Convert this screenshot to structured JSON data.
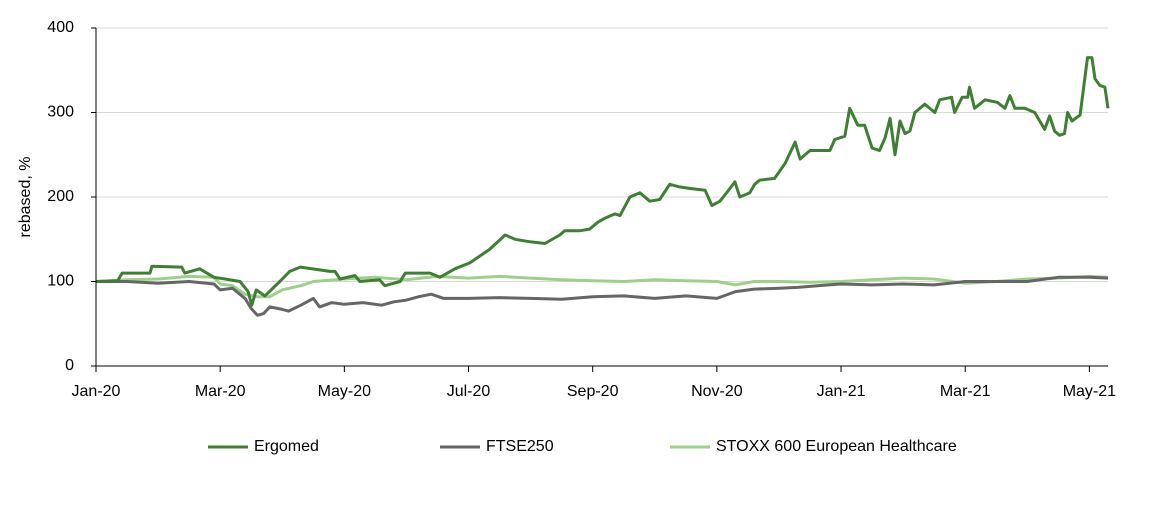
{
  "chart_data": {
    "type": "line",
    "y_label": "rebased, %",
    "ylim": [
      0,
      400
    ],
    "yticks": [
      0,
      100,
      200,
      300,
      400
    ],
    "grid": true,
    "xlim": [
      0,
      16.3
    ],
    "xticks": [
      {
        "value": 0,
        "label": "Jan-20"
      },
      {
        "value": 2,
        "label": "Mar-20"
      },
      {
        "value": 4,
        "label": "May-20"
      },
      {
        "value": 6,
        "label": "Jul-20"
      },
      {
        "value": 8,
        "label": "Sep-20"
      },
      {
        "value": 10,
        "label": "Nov-20"
      },
      {
        "value": 12,
        "label": "Jan-21"
      },
      {
        "value": 14,
        "label": "Mar-21"
      },
      {
        "value": 16,
        "label": "May-21"
      }
    ],
    "legend": "bottom",
    "series": [
      {
        "name": "Ergomed",
        "color": "#3e7f34",
        "x": [
          0,
          0.35,
          0.42,
          0.87,
          0.9,
          1.38,
          1.43,
          1.67,
          1.9,
          2.08,
          2.32,
          2.45,
          2.51,
          2.58,
          2.72,
          2.96,
          3.12,
          3.29,
          3.77,
          3.85,
          3.93,
          4.17,
          4.25,
          4.57,
          4.65,
          4.9,
          4.98,
          5.38,
          5.54,
          5.78,
          6.02,
          6.18,
          6.34,
          6.59,
          6.75,
          6.99,
          7.23,
          7.47,
          7.55,
          7.79,
          7.95,
          8.08,
          8.2,
          8.36,
          8.44,
          8.6,
          8.76,
          8.92,
          9.08,
          9.24,
          9.4,
          9.57,
          9.81,
          9.92,
          10.05,
          10.21,
          10.29,
          10.37,
          10.53,
          10.61,
          10.69,
          10.93,
          11.1,
          11.26,
          11.34,
          11.5,
          11.66,
          11.82,
          11.9,
          12.06,
          12.14,
          12.27,
          12.38,
          12.5,
          12.62,
          12.71,
          12.79,
          12.87,
          12.95,
          13.03,
          13.11,
          13.19,
          13.35,
          13.51,
          13.59,
          13.78,
          13.83,
          13.95,
          14.04,
          14.07,
          14.15,
          14.32,
          14.52,
          14.64,
          14.72,
          14.8,
          14.96,
          15.12,
          15.28,
          15.36,
          15.44,
          15.52,
          15.6,
          15.65,
          15.72,
          15.85,
          15.97,
          16.04,
          16.09,
          16.17,
          16.25,
          16.3
        ],
        "values": [
          100,
          101,
          110,
          110,
          118,
          117,
          110,
          115,
          105,
          103,
          100,
          88,
          72,
          90,
          83,
          100,
          112,
          117,
          112,
          112,
          103,
          107,
          100,
          102,
          95,
          100,
          110,
          110,
          105,
          115,
          122,
          130,
          138,
          155,
          150,
          147,
          145,
          155,
          160,
          160,
          162,
          170,
          175,
          180,
          178,
          200,
          205,
          195,
          197,
          215,
          212,
          210,
          208,
          190,
          195,
          210,
          218,
          200,
          205,
          215,
          220,
          222,
          240,
          265,
          245,
          255,
          255,
          255,
          268,
          272,
          305,
          285,
          285,
          258,
          255,
          270,
          293,
          250,
          290,
          275,
          278,
          300,
          310,
          300,
          315,
          318,
          300,
          318,
          318,
          330,
          305,
          315,
          312,
          305,
          320,
          305,
          305,
          300,
          280,
          296,
          278,
          273,
          275,
          300,
          290,
          297,
          365,
          365,
          340,
          332,
          330,
          305
        ]
      },
      {
        "name": "FTSE250",
        "color": "#666666",
        "x": [
          0,
          0.5,
          1,
          1.5,
          1.9,
          2,
          2.2,
          2.4,
          2.5,
          2.6,
          2.7,
          2.8,
          3,
          3.1,
          3.3,
          3.5,
          3.6,
          3.8,
          4,
          4.3,
          4.6,
          4.8,
          5,
          5.2,
          5.4,
          5.6,
          6,
          6.5,
          7,
          7.5,
          8,
          8.5,
          9,
          9.5,
          10,
          10.3,
          10.6,
          11,
          11.3,
          11.8,
          12,
          12.5,
          13,
          13.5,
          14,
          14.5,
          15,
          15.5,
          16,
          16.3
        ],
        "values": [
          100,
          100,
          98,
          100,
          97,
          90,
          92,
          80,
          68,
          60,
          62,
          70,
          67,
          65,
          72,
          80,
          70,
          75,
          73,
          75,
          72,
          76,
          78,
          82,
          85,
          80,
          80,
          81,
          80,
          79,
          82,
          83,
          80,
          83,
          80,
          88,
          91,
          92,
          93,
          96,
          97,
          96,
          97,
          96,
          100,
          100,
          100,
          105,
          105,
          104
        ]
      },
      {
        "name": "STOXX 600 European Healthcare",
        "color": "#9dd08b",
        "x": [
          0,
          0.5,
          1,
          1.5,
          1.9,
          2,
          2.2,
          2.4,
          2.6,
          2.8,
          3,
          3.3,
          3.5,
          4,
          4.5,
          5,
          5.5,
          6,
          6.5,
          7,
          7.5,
          8,
          8.5,
          9,
          9.5,
          10,
          10.3,
          10.6,
          11,
          11.5,
          12,
          12.5,
          13,
          13.5,
          14,
          14.5,
          15,
          15.5,
          16,
          16.3
        ],
        "values": [
          100,
          102,
          103,
          106,
          105,
          97,
          95,
          85,
          82,
          82,
          90,
          95,
          100,
          103,
          105,
          102,
          106,
          104,
          106,
          104,
          102,
          101,
          100,
          102,
          101,
          100,
          96,
          100,
          100,
          99,
          100,
          102,
          104,
          103,
          98,
          100,
          103,
          104,
          106,
          105
        ]
      }
    ]
  }
}
